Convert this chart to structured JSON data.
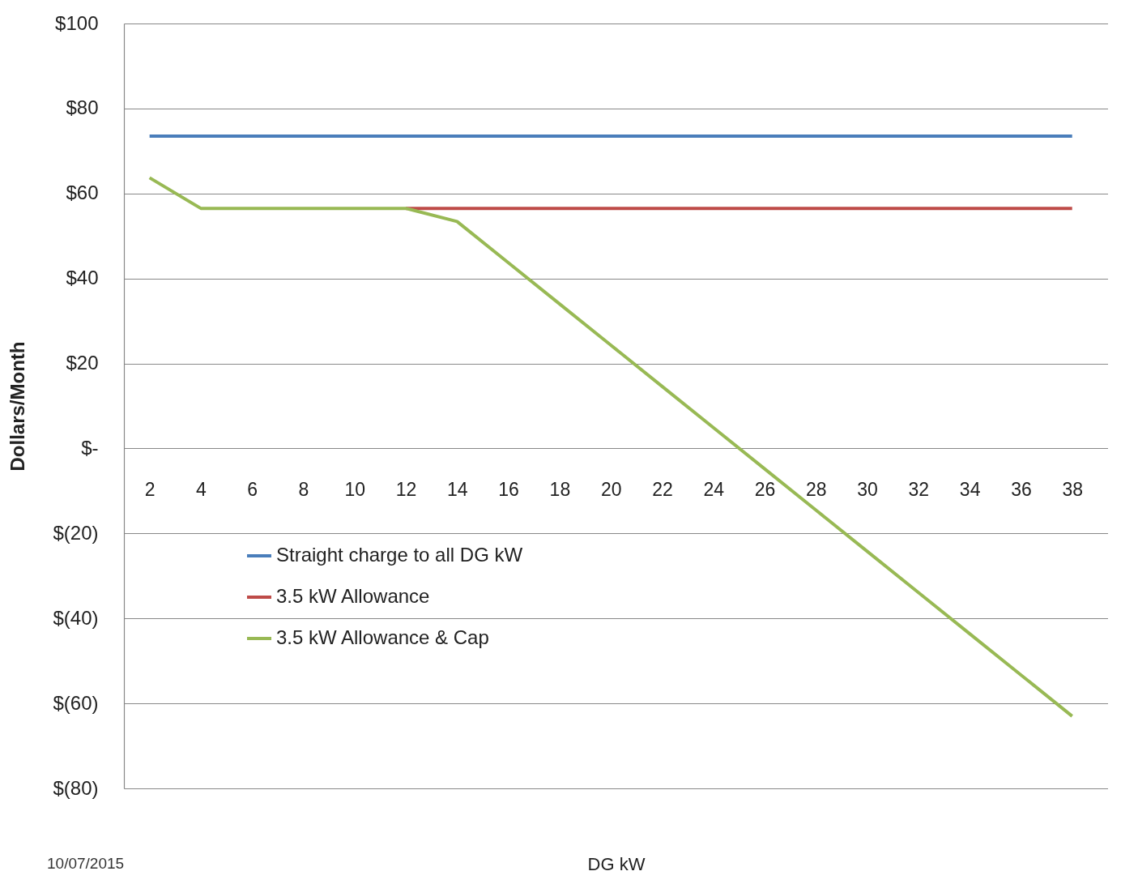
{
  "chart_data": {
    "type": "line",
    "xlabel": "DG kW",
    "ylabel": "Dollars/Month",
    "x": [
      2,
      4,
      6,
      8,
      10,
      12,
      14,
      16,
      18,
      20,
      22,
      24,
      26,
      28,
      30,
      32,
      34,
      36,
      38
    ],
    "xlim": [
      1,
      39.4
    ],
    "xticks": [
      2,
      4,
      6,
      8,
      10,
      12,
      14,
      16,
      18,
      20,
      22,
      24,
      26,
      28,
      30,
      32,
      34,
      36,
      38
    ],
    "series": [
      {
        "name": "Straight charge to all DG kW",
        "color": "#4a7ebb",
        "values": [
          73.5,
          73.5,
          73.5,
          73.5,
          73.5,
          73.5,
          73.5,
          73.5,
          73.5,
          73.5,
          73.5,
          73.5,
          73.5,
          73.5,
          73.5,
          73.5,
          73.5,
          73.5,
          73.5
        ]
      },
      {
        "name": "3.5 kW Allowance",
        "color": "#be4b48",
        "values": [
          null,
          null,
          null,
          null,
          null,
          56.5,
          56.5,
          56.5,
          56.5,
          56.5,
          56.5,
          56.5,
          56.5,
          56.5,
          56.5,
          56.5,
          56.5,
          56.5,
          56.5
        ]
      },
      {
        "name": "3.5 kW Allowance & Cap",
        "color": "#98b954",
        "values": [
          63.7,
          56.5,
          56.5,
          56.5,
          56.5,
          56.5,
          53.4,
          43.7,
          34.0,
          24.3,
          14.6,
          4.9,
          -4.8,
          -14.5,
          -24.2,
          -33.9,
          -43.6,
          -53.3,
          -63.0
        ]
      }
    ],
    "ylim": [
      -80,
      100
    ],
    "yticks": [
      {
        "value": -80,
        "label": "$(80)"
      },
      {
        "value": -60,
        "label": "$(60)"
      },
      {
        "value": -40,
        "label": "$(40)"
      },
      {
        "value": -20,
        "label": "$(20)"
      },
      {
        "value": 0,
        "label": "$-"
      },
      {
        "value": 20,
        "label": "$20"
      },
      {
        "value": 40,
        "label": "$40"
      },
      {
        "value": 60,
        "label": "$60"
      },
      {
        "value": 80,
        "label": "$80"
      },
      {
        "value": 100,
        "label": "$100"
      }
    ],
    "grid": "y",
    "legend": "bottom left",
    "marker": "none",
    "line_style": "solid",
    "annotations": [
      "10/07/2015"
    ]
  }
}
